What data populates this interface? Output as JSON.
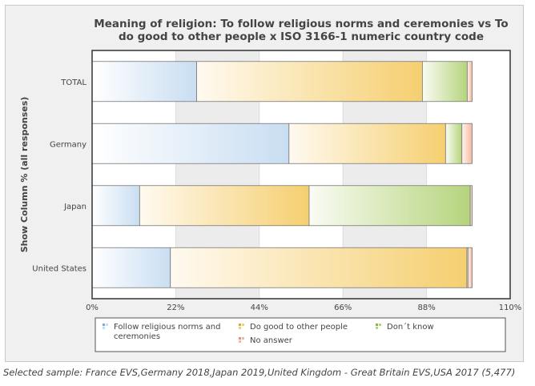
{
  "chart_data": {
    "type": "bar",
    "orientation": "horizontal",
    "stacked": true,
    "title": "Meaning of religion: To follow religious norms and ceremonies vs To do good to other people x ISO 3166-1 numeric country code",
    "title_lines": [
      "Meaning of religion: To follow religious norms and ceremonies vs To",
      "do good to other people x ISO 3166-1 numeric country code"
    ],
    "ylabel": "Show Column % (all responses)",
    "xlabel": "",
    "xlim": [
      0,
      110
    ],
    "xticks": [
      0,
      22,
      44,
      66,
      88,
      110
    ],
    "xtick_labels": [
      "0%",
      "22%",
      "44%",
      "66%",
      "88%",
      "110%"
    ],
    "categories": [
      "TOTAL",
      "Germany",
      "Japan",
      "United States"
    ],
    "series": [
      {
        "name": "Follow religious norms and ceremonies",
        "values": [
          27.5,
          51.8,
          12.5,
          20.6
        ]
      },
      {
        "name": "Do good to other people",
        "values": [
          59.4,
          41.2,
          44.6,
          78.0
        ]
      },
      {
        "name": "Don´t know",
        "values": [
          11.8,
          4.3,
          42.4,
          0.3
        ]
      },
      {
        "name": "No answer",
        "values": [
          1.3,
          2.7,
          0.5,
          1.1
        ]
      }
    ],
    "legend_position": "bottom",
    "grid": true
  },
  "caption": "Selected sample: France EVS,Germany 2018,Japan 2019,United Kingdom - Great Britain EVS,USA 2017 (5,477)",
  "colors": {
    "series": [
      "#c9def2",
      "#f5cf70",
      "#b5d47c",
      "#f5b89e"
    ],
    "series_light": [
      "#ffffff",
      "#fffaf0",
      "#fafcf4",
      "#fff5f0"
    ],
    "series_edge": [
      "#7fa8d2",
      "#d6a83a",
      "#8ab34e",
      "#e0936f"
    ]
  }
}
